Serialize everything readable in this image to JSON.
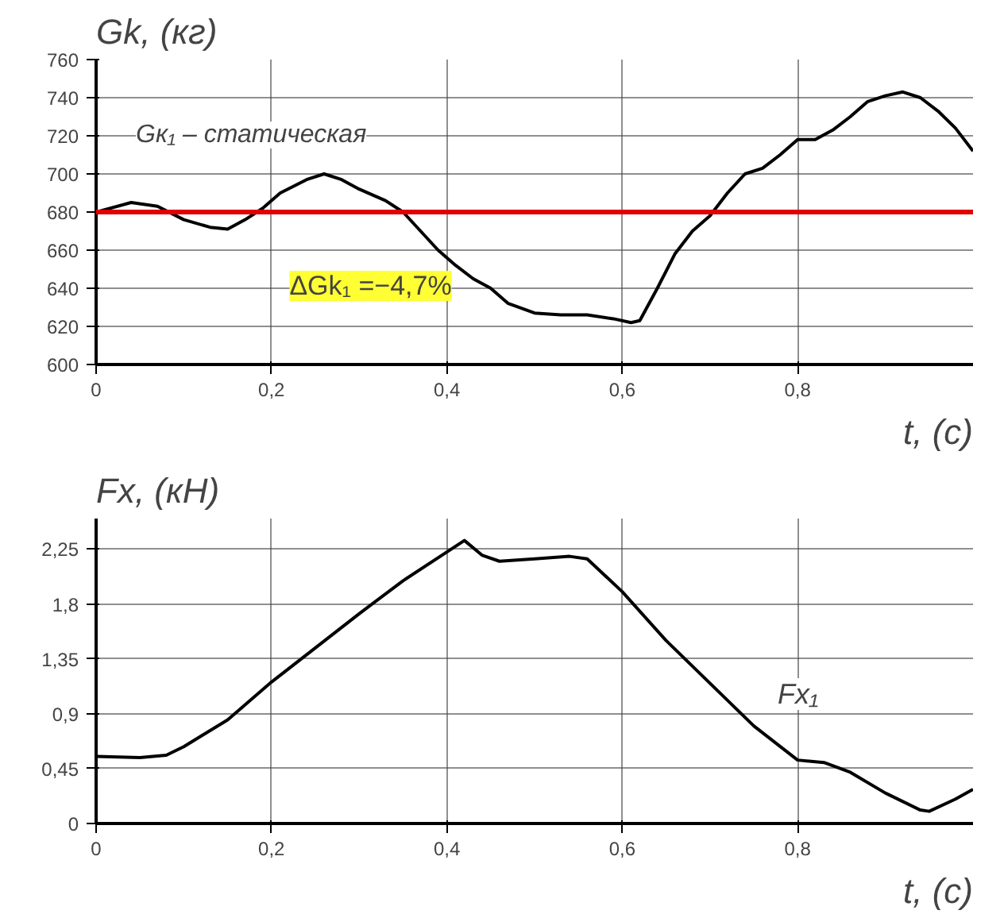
{
  "chart_data": [
    {
      "type": "line",
      "ylabel": "Gk, (кг)",
      "xlabel": "t, (c)",
      "xlim": [
        0,
        1
      ],
      "xticks": [
        0,
        {
          "value": 0.2,
          "label": "0,2"
        },
        {
          "value": 0.4,
          "label": "0,4"
        },
        {
          "value": 0.6,
          "label": "0,6"
        },
        {
          "value": 0.8,
          "label": "0,8"
        }
      ],
      "ylim": [
        600,
        760
      ],
      "yticks": [
        600,
        620,
        640,
        660,
        680,
        700,
        720,
        740,
        760
      ],
      "grid": true,
      "x": [
        0,
        0.04,
        0.07,
        0.1,
        0.13,
        0.15,
        0.17,
        0.19,
        0.21,
        0.24,
        0.26,
        0.28,
        0.3,
        0.33,
        0.35,
        0.37,
        0.39,
        0.41,
        0.43,
        0.45,
        0.47,
        0.5,
        0.53,
        0.56,
        0.59,
        0.61,
        0.62,
        0.64,
        0.66,
        0.68,
        0.7,
        0.72,
        0.74,
        0.76,
        0.78,
        0.8,
        0.82,
        0.84,
        0.86,
        0.88,
        0.9,
        0.92,
        0.94,
        0.96,
        0.98,
        1.0
      ],
      "series": [
        {
          "color": "#000000",
          "values": [
            680,
            685,
            683,
            676,
            672,
            671,
            676,
            682,
            690,
            697,
            700,
            697,
            692,
            686,
            680,
            670,
            660,
            652,
            645,
            640,
            632,
            627,
            626,
            626,
            624,
            622,
            623,
            640,
            658,
            670,
            678,
            690,
            700,
            703,
            710,
            718,
            718,
            723,
            730,
            738,
            741,
            743,
            740,
            733,
            724,
            712
          ]
        }
      ],
      "ref_lines": [
        {
          "axis": "y",
          "value": 680,
          "label": "Gк₁ – статическая",
          "color": "#e00000"
        }
      ],
      "annotations": [
        {
          "text": "ΔGk₁ =−4,7%",
          "x": 0.42,
          "y": 645
        }
      ]
    },
    {
      "type": "line",
      "ylabel": "Fx, (кН)",
      "xlabel": "t, (c)",
      "xlim": [
        0,
        1
      ],
      "xticks": [
        0,
        {
          "value": 0.2,
          "label": "0,2"
        },
        {
          "value": 0.4,
          "label": "0,4"
        },
        {
          "value": 0.6,
          "label": "0,6"
        },
        {
          "value": 0.8,
          "label": "0,8"
        }
      ],
      "ylim": [
        0,
        2.5
      ],
      "yticks": [
        0,
        {
          "value": 0.45,
          "label": "0,45"
        },
        {
          "value": 0.9,
          "label": "0,9"
        },
        {
          "value": 1.35,
          "label": "1,35"
        },
        {
          "value": 1.8,
          "label": "1,8"
        },
        {
          "value": 2.25,
          "label": "2,25"
        }
      ],
      "grid": true,
      "x": [
        0,
        0.05,
        0.08,
        0.1,
        0.15,
        0.2,
        0.3,
        0.35,
        0.42,
        0.44,
        0.46,
        0.5,
        0.54,
        0.56,
        0.6,
        0.65,
        0.7,
        0.75,
        0.8,
        0.83,
        0.86,
        0.9,
        0.94,
        0.95,
        0.98,
        1.0
      ],
      "series": [
        {
          "name": "Fx₁",
          "color": "#000000",
          "values": [
            0.55,
            0.54,
            0.56,
            0.63,
            0.85,
            1.16,
            1.72,
            1.99,
            2.32,
            2.2,
            2.15,
            2.17,
            2.19,
            2.17,
            1.9,
            1.5,
            1.15,
            0.8,
            0.52,
            0.5,
            0.42,
            0.25,
            0.11,
            0.1,
            0.2,
            0.28
          ]
        }
      ]
    }
  ]
}
